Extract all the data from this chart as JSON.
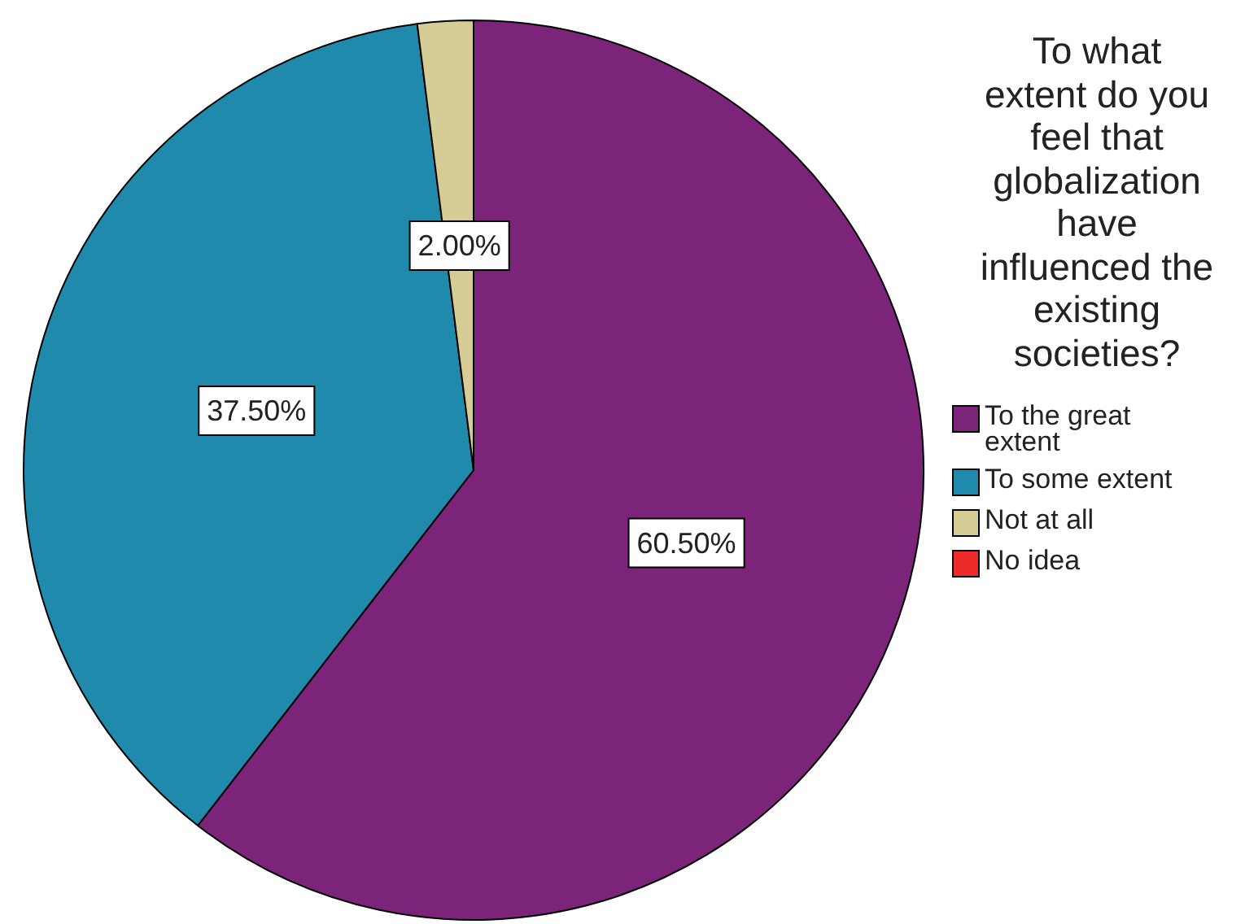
{
  "chart_data": {
    "type": "pie",
    "legend_title": "To what extent do you feel that globalization have influenced the existing societies?",
    "categories": [
      "To the great extent",
      "To some extent",
      "Not at all",
      "No idea"
    ],
    "values": [
      60.5,
      37.5,
      2.0,
      0
    ],
    "colors": [
      "#7b2479",
      "#1f8aab",
      "#d6cc96",
      "#ee2b2b"
    ],
    "value_labels": [
      "60.50%",
      "37.50%",
      "2.00%",
      null
    ],
    "legend": "right"
  }
}
